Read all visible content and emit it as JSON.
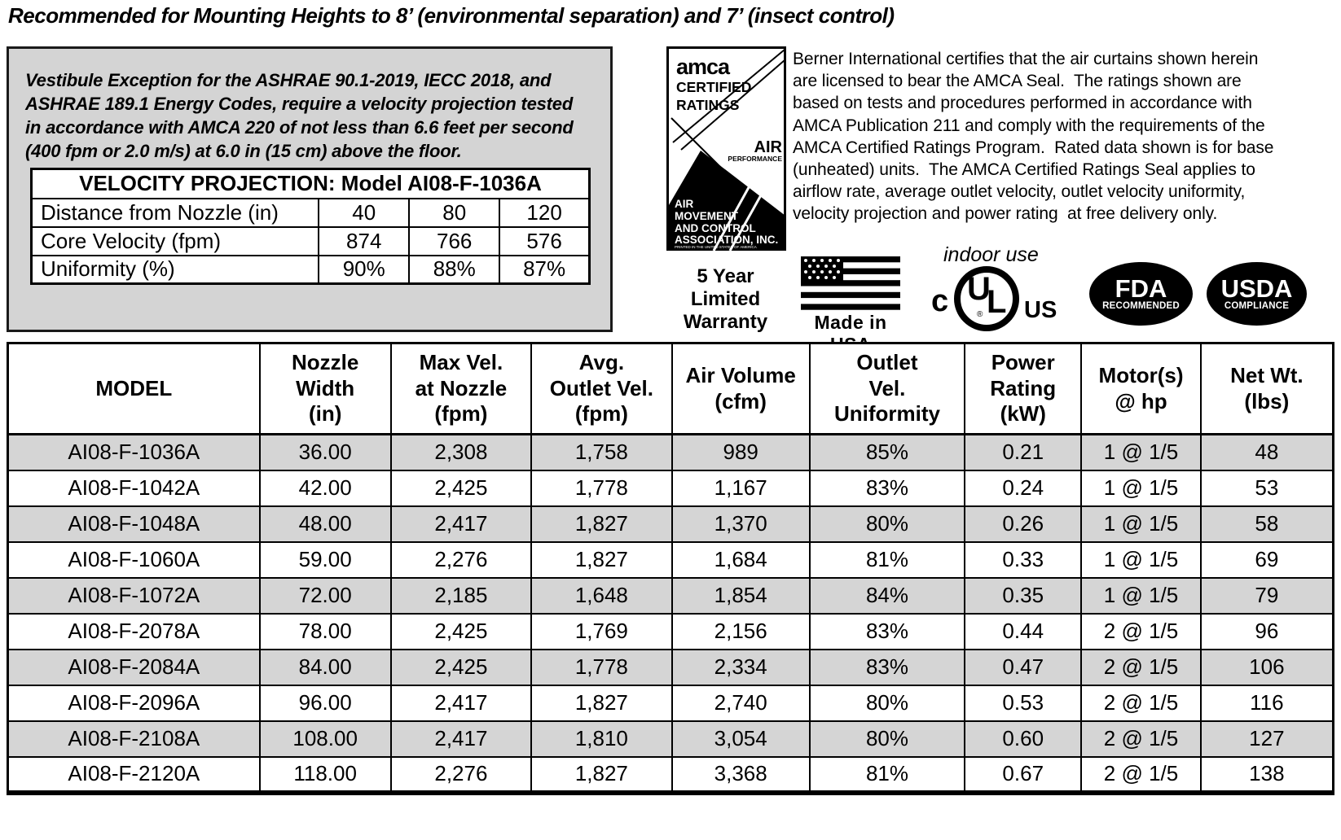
{
  "title": "Recommended for Mounting Heights to 8’ (environmental separation) and 7’ (insect control)",
  "vestibule_note": "Vestibule Exception for the ASHRAE 90.1-2019, IECC 2018, and\nASHRAE 189.1 Energy Codes, require a velocity projection tested\nin accordance with AMCA 220 of not less than 6.6 feet per second\n(400 fpm or 2.0 m/s) at 6.0 in (15 cm) above the floor.",
  "velocity_table": {
    "title": "VELOCITY PROJECTION: Model AI08-F-1036A",
    "rows": [
      {
        "label": "Distance from Nozzle (in)",
        "values": [
          "40",
          "80",
          "120"
        ]
      },
      {
        "label": "Core Velocity (fpm)",
        "values": [
          "874",
          "766",
          "576"
        ]
      },
      {
        "label": "Uniformity (%)",
        "values": [
          "90%",
          "88%",
          "87%"
        ]
      }
    ]
  },
  "amca_seal": {
    "brand": "amca",
    "certified": "CERTIFIED",
    "ratings": "RATINGS",
    "air": "AIR",
    "performance": "PERFORMANCE",
    "org_lines": [
      "AIR",
      "MOVEMENT",
      "AND CONTROL",
      "ASSOCIATION, INC."
    ],
    "footnote": "PRINTED IN THE UNITED STATES OF AMERICA"
  },
  "certification_text": "Berner International certifies that the air curtains shown herein\nare licensed to bear the AMCA Seal.  The ratings shown are\nbased on tests and procedures performed in accordance with\nAMCA Publication 211 and comply with the requirements of the\nAMCA Certified Ratings Program.  Rated data shown is for base\n(unheated) units.  The AMCA Certified Ratings Seal applies to\nairflow rate, average outlet velocity, outlet velocity uniformity,\nvelocity projection and power rating  at free delivery only.",
  "badges": {
    "warranty": "5 Year\nLimited\nWarranty",
    "made_in_usa": "Made in USA",
    "indoor_use": "indoor use",
    "ul_c": "c",
    "ul_u": "U",
    "ul_l": "L",
    "ul_r": "®",
    "ul_us": "US",
    "fda_title": "FDA",
    "fda_sub": "RECOMMENDED",
    "usda_title": "USDA",
    "usda_sub": "COMPLIANCE"
  },
  "main_table": {
    "headers": [
      "MODEL",
      "Nozzle\nWidth\n(in)",
      "Max Vel.\nat Nozzle\n(fpm)",
      "Avg.\nOutlet Vel.\n(fpm)",
      "Air Volume\n(cfm)",
      "Outlet\nVel.\nUniformity",
      "Power\nRating\n(kW)",
      "Motor(s)\n@ hp",
      "Net Wt.\n(lbs)"
    ],
    "rows": [
      [
        "AI08-F-1036A",
        "36.00",
        "2,308",
        "1,758",
        "989",
        "85%",
        "0.21",
        "1 @ 1/5",
        "48"
      ],
      [
        "AI08-F-1042A",
        "42.00",
        "2,425",
        "1,778",
        "1,167",
        "83%",
        "0.24",
        "1 @ 1/5",
        "53"
      ],
      [
        "AI08-F-1048A",
        "48.00",
        "2,417",
        "1,827",
        "1,370",
        "80%",
        "0.26",
        "1 @ 1/5",
        "58"
      ],
      [
        "AI08-F-1060A",
        "59.00",
        "2,276",
        "1,827",
        "1,684",
        "81%",
        "0.33",
        "1 @ 1/5",
        "69"
      ],
      [
        "AI08-F-1072A",
        "72.00",
        "2,185",
        "1,648",
        "1,854",
        "84%",
        "0.35",
        "1 @ 1/5",
        "79"
      ],
      [
        "AI08-F-2078A",
        "78.00",
        "2,425",
        "1,769",
        "2,156",
        "83%",
        "0.44",
        "2 @ 1/5",
        "96"
      ],
      [
        "AI08-F-2084A",
        "84.00",
        "2,425",
        "1,778",
        "2,334",
        "83%",
        "0.47",
        "2 @ 1/5",
        "106"
      ],
      [
        "AI08-F-2096A",
        "96.00",
        "2,417",
        "1,827",
        "2,740",
        "80%",
        "0.53",
        "2 @ 1/5",
        "116"
      ],
      [
        "AI08-F-2108A",
        "108.00",
        "2,417",
        "1,810",
        "3,054",
        "80%",
        "0.60",
        "2 @ 1/5",
        "127"
      ],
      [
        "AI08-F-2120A",
        "118.00",
        "2,276",
        "1,827",
        "3,368",
        "81%",
        "0.67",
        "2 @ 1/5",
        "138"
      ]
    ]
  },
  "colors": {
    "shaded_row": "#d5d5d5",
    "panel_bg": "#d4d4d4",
    "ink": "#000000"
  }
}
